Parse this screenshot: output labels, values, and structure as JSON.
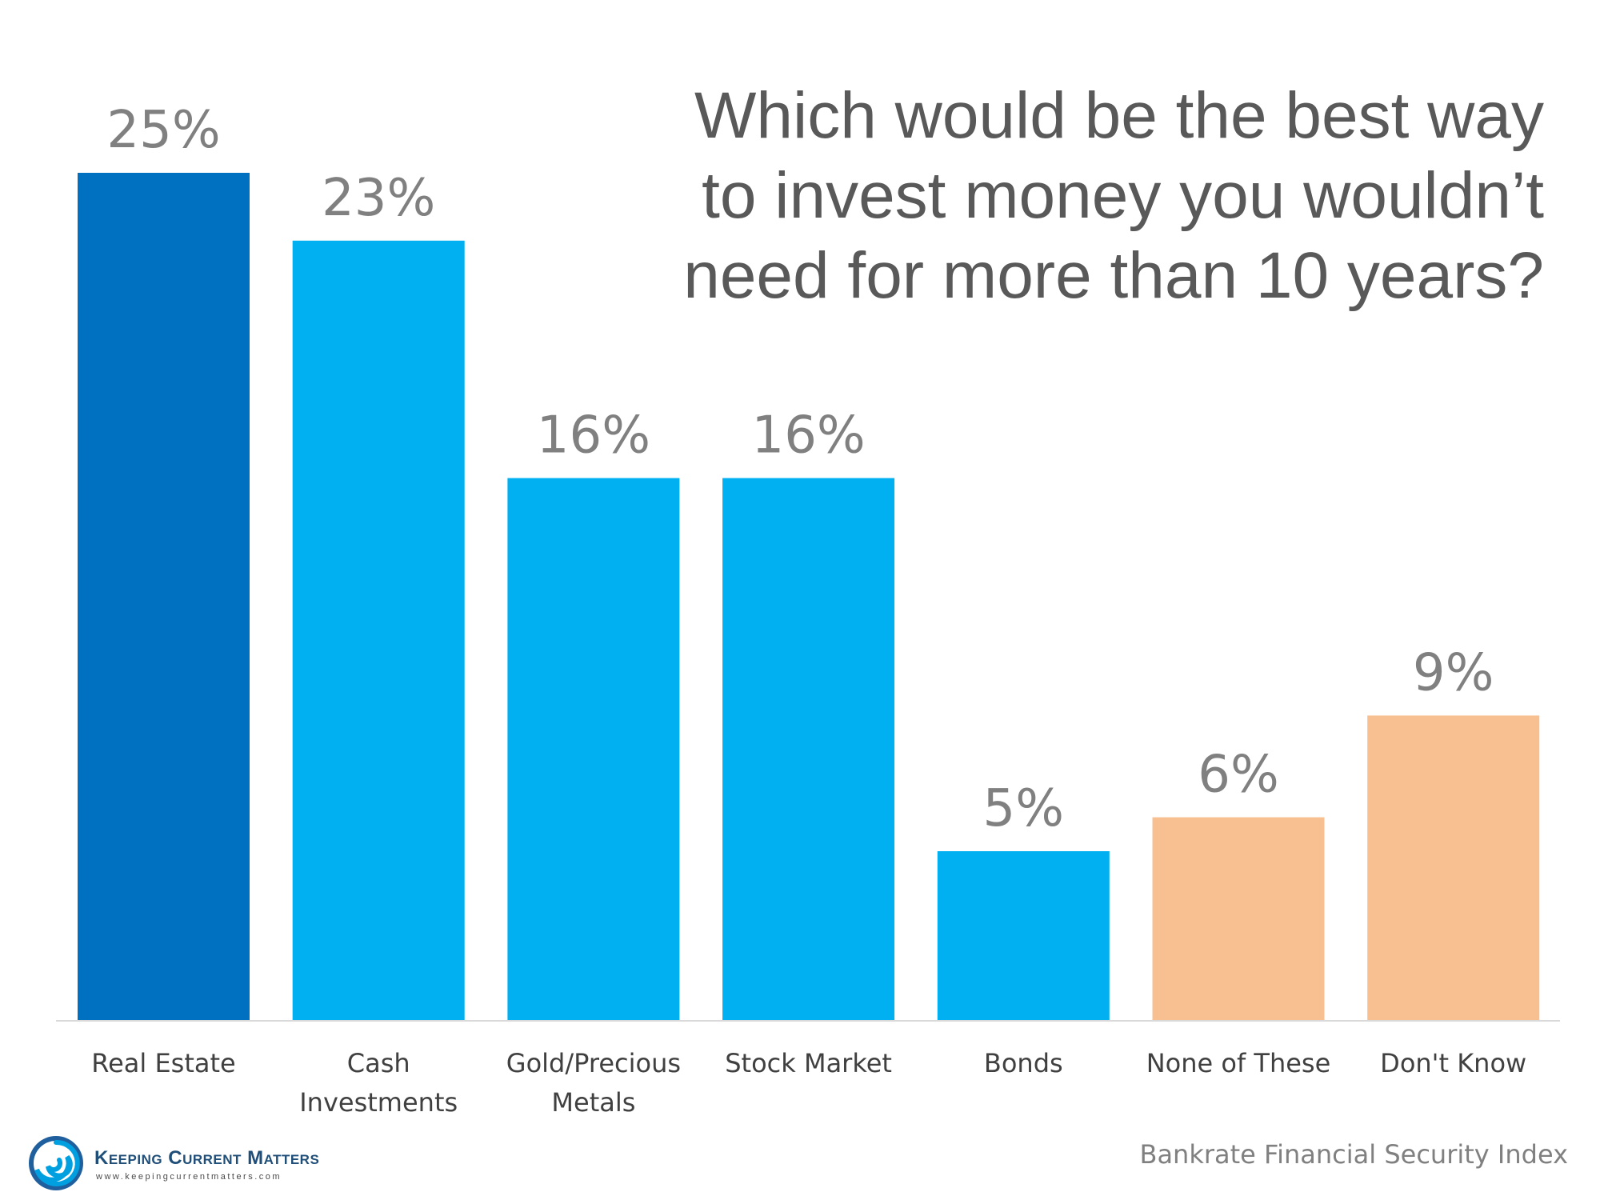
{
  "chart_data": {
    "type": "bar",
    "title_lines": [
      "Which would be the best way",
      "to invest money you wouldn’t",
      "need for more than 10 years?"
    ],
    "categories": [
      [
        "Real Estate"
      ],
      [
        "Cash",
        "Investments"
      ],
      [
        "Gold/Precious",
        "Metals"
      ],
      [
        "Stock Market"
      ],
      [
        "Bonds"
      ],
      [
        "None of These"
      ],
      [
        "Don't Know"
      ]
    ],
    "values": [
      25,
      23,
      16,
      16,
      5,
      6,
      9
    ],
    "value_labels": [
      "25%",
      "23%",
      "16%",
      "16%",
      "5%",
      "6%",
      "9%"
    ],
    "unit": "%",
    "ylim": [
      0,
      25
    ],
    "bar_colors": [
      "#0070c0",
      "#00b0f0",
      "#00b0f0",
      "#00b0f0",
      "#00b0f0",
      "#f8c090",
      "#f8c090"
    ],
    "label_color": "#808080",
    "grid": false,
    "legend": "none"
  },
  "source_text": "Bankrate Financial Security Index",
  "logo": {
    "name": "Keeping Current Matters",
    "url": "www.keepingcurrentmatters.com"
  }
}
